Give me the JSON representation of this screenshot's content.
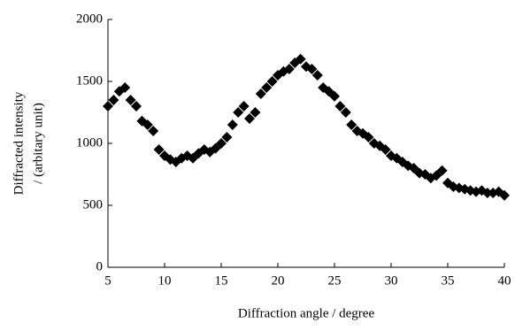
{
  "chart_data": {
    "type": "scatter",
    "xlabel": "Diffraction angle / degree",
    "ylabel": [
      "Diffracted intensity",
      "/ (arbitary unit)"
    ],
    "x": [
      5,
      5.5,
      6,
      6.5,
      7,
      7.5,
      8,
      8.5,
      9,
      9.5,
      10,
      10.5,
      11,
      11.5,
      12,
      12.5,
      13,
      13.5,
      14,
      14.5,
      15,
      15.5,
      16,
      16.5,
      17,
      17.5,
      18,
      18.5,
      19,
      19.5,
      20,
      20.5,
      21,
      21.5,
      22,
      22.5,
      23,
      23.5,
      24,
      24.5,
      25,
      25.5,
      26,
      26.5,
      27,
      27.5,
      28,
      28.5,
      29,
      29.5,
      30,
      30.5,
      31,
      31.5,
      32,
      32.5,
      33,
      33.5,
      34,
      34.5,
      35,
      35.5,
      36,
      36.5,
      37,
      37.5,
      38,
      38.5,
      39,
      39.5,
      40
    ],
    "values": [
      1300,
      1350,
      1420,
      1450,
      1350,
      1300,
      1180,
      1150,
      1100,
      950,
      900,
      870,
      850,
      880,
      900,
      880,
      920,
      950,
      930,
      960,
      1000,
      1050,
      1150,
      1250,
      1300,
      1200,
      1250,
      1400,
      1450,
      1500,
      1550,
      1580,
      1600,
      1650,
      1680,
      1620,
      1600,
      1550,
      1450,
      1420,
      1380,
      1300,
      1250,
      1150,
      1100,
      1080,
      1050,
      1000,
      980,
      950,
      900,
      880,
      850,
      820,
      800,
      760,
      750,
      720,
      740,
      780,
      680,
      650,
      640,
      630,
      620,
      610,
      620,
      600,
      600,
      610,
      580
    ],
    "color": "#000000",
    "xlim": [
      5,
      40
    ],
    "xticks": [
      5,
      10,
      15,
      20,
      25,
      30,
      35,
      40
    ],
    "ylim": [
      0,
      2000
    ],
    "yticks": [
      0,
      500,
      1000,
      1500,
      2000
    ]
  }
}
